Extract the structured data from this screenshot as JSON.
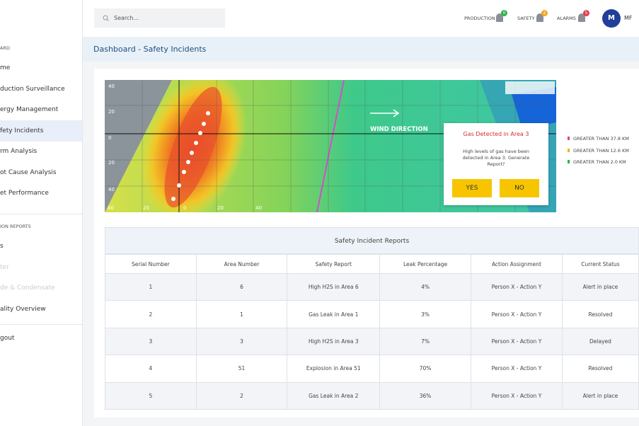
{
  "sidebar": {
    "section_1": "ARD",
    "items_1": [
      "me",
      "duction Surveillance",
      "ergy Management",
      "fety Incidents",
      "rm Analysis",
      "ot Cause Analysis",
      "et Performance"
    ],
    "section_2": "ION REPORTS",
    "items_2": [
      "s",
      "ter",
      "de & Condensate",
      "ality Overview"
    ],
    "logout": "gout"
  },
  "header": {
    "search": "Search...",
    "indicators": [
      {
        "label": "PRODUCTION",
        "badge": "0"
      },
      {
        "label": "SAFETY",
        "badge": "2"
      },
      {
        "label": "ALARMS",
        "badge": "5"
      }
    ],
    "avatar": "M",
    "user": "MF"
  },
  "breadcrumb": "Dashboard - Safety Incidents",
  "map": {
    "y_labels": [
      "40",
      "20",
      "0",
      "20",
      "40"
    ],
    "x_labels": [
      "40",
      "20",
      "0",
      "20",
      "40"
    ],
    "wind": "WIND DIRECTION",
    "popup": {
      "title": "Gas Detected in Area 3",
      "message": "High levels of gas have been detected in Area 3. Generate Report?",
      "yes": "YES",
      "no": "NO"
    },
    "legend": [
      "GREATER THAN 37.8 KM",
      "GREATER THAN 12.6 KM",
      "GREATER THAN 2.0 KM"
    ]
  },
  "table": {
    "title": "Safety Incident Reports",
    "columns": [
      "Serial Number",
      "Area Number",
      "Safety Report",
      "Leak Percentage",
      "Action Assignment",
      "Current Status"
    ],
    "rows": [
      [
        "1",
        "6",
        "High H2S in Area 6",
        "4%",
        "Person X - Action Y",
        "Alert in place"
      ],
      [
        "2",
        "1",
        "Gas Leak in Area 1",
        "3%",
        "Person X - Action Y",
        "Resolved"
      ],
      [
        "3",
        "3",
        "High H2S in Area 3",
        "7%",
        "Person X - Action Y",
        "Delayed"
      ],
      [
        "4",
        "51",
        "Explosion in Area 51",
        "70%",
        "Person X - Action Y",
        "Resolved"
      ],
      [
        "5",
        "2",
        "Gas Leak in Area 2",
        "36%",
        "Person X - Action Y",
        "Alert in place"
      ]
    ]
  }
}
